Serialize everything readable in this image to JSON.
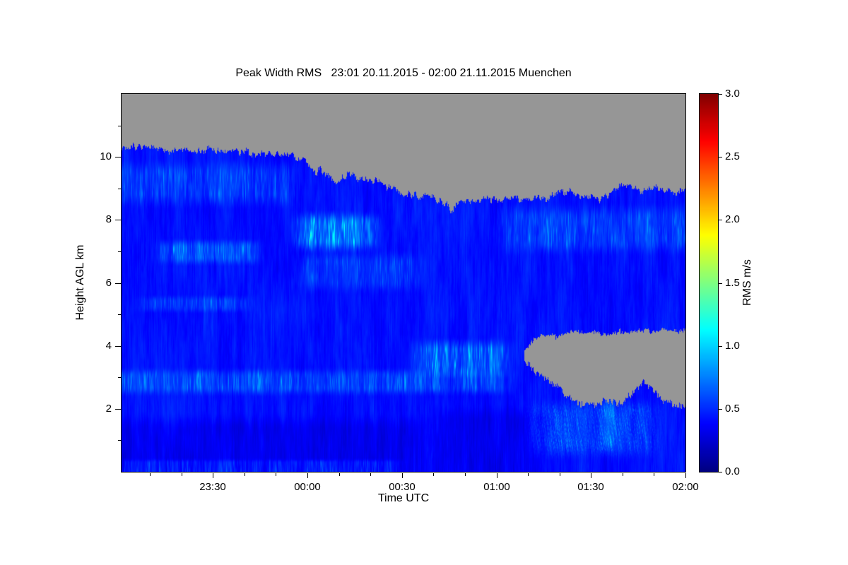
{
  "chart_data": {
    "type": "heatmap",
    "title": "Peak Width RMS   23:01 20.11.2015 - 02:00 21.11.2015 Muenchen",
    "xlabel": "Time UTC",
    "ylabel": "Height AGL km",
    "x_axis": {
      "range_minutes": [
        0,
        179
      ],
      "ticks": [
        {
          "minute": 29,
          "label": "23:30"
        },
        {
          "minute": 59,
          "label": "00:00"
        },
        {
          "minute": 89,
          "label": "00:30"
        },
        {
          "minute": 119,
          "label": "01:00"
        },
        {
          "minute": 149,
          "label": "01:30"
        },
        {
          "minute": 179,
          "label": "02:00"
        }
      ],
      "minor_minutes": [
        9,
        19,
        39,
        49,
        69,
        79,
        99,
        109,
        129,
        139,
        159,
        169
      ]
    },
    "y_axis": {
      "range_km": [
        0,
        12
      ],
      "ticks": [
        {
          "km": 2,
          "label": "2"
        },
        {
          "km": 4,
          "label": "4"
        },
        {
          "km": 6,
          "label": "6"
        },
        {
          "km": 8,
          "label": "8"
        },
        {
          "km": 10,
          "label": "10"
        }
      ],
      "minor_km": [
        1,
        3,
        5,
        7,
        9,
        11
      ]
    },
    "colorbar": {
      "label": "RMS m/s",
      "range": [
        0,
        3
      ],
      "ticks": [
        {
          "value": 0.0,
          "label": "0.0"
        },
        {
          "value": 0.5,
          "label": "0.5"
        },
        {
          "value": 1.0,
          "label": "1.0"
        },
        {
          "value": 1.5,
          "label": "1.5"
        },
        {
          "value": 2.0,
          "label": "2.0"
        },
        {
          "value": 2.5,
          "label": "2.5"
        },
        {
          "value": 3.0,
          "label": "3.0"
        }
      ],
      "stops": [
        {
          "v": 0.0,
          "rgb": [
            0,
            0,
            131
          ]
        },
        {
          "v": 0.375,
          "rgb": [
            0,
            0,
            255
          ]
        },
        {
          "v": 1.125,
          "rgb": [
            0,
            255,
            255
          ]
        },
        {
          "v": 1.875,
          "rgb": [
            255,
            255,
            0
          ]
        },
        {
          "v": 2.625,
          "rgb": [
            255,
            0,
            0
          ]
        },
        {
          "v": 3.0,
          "rgb": [
            128,
            0,
            0
          ]
        }
      ]
    },
    "no_data_color": "#969696",
    "field": {
      "base_value": 0.26,
      "cloud_top_km": [
        [
          0,
          10.35
        ],
        [
          8,
          10.3
        ],
        [
          18,
          10.22
        ],
        [
          30,
          10.2
        ],
        [
          42,
          10.15
        ],
        [
          52,
          10.05
        ],
        [
          58,
          9.95
        ],
        [
          61,
          9.6
        ],
        [
          64,
          9.5
        ],
        [
          68,
          9.2
        ],
        [
          72,
          9.45
        ],
        [
          76,
          9.3
        ],
        [
          82,
          9.25
        ],
        [
          86,
          8.95
        ],
        [
          92,
          8.8
        ],
        [
          98,
          8.75
        ],
        [
          103,
          8.5
        ],
        [
          105,
          8.25
        ],
        [
          107,
          8.6
        ],
        [
          112,
          8.6
        ],
        [
          120,
          8.65
        ],
        [
          128,
          8.7
        ],
        [
          136,
          8.72
        ],
        [
          142,
          8.95
        ],
        [
          147,
          8.7
        ],
        [
          152,
          8.62
        ],
        [
          157,
          9.0
        ],
        [
          161,
          9.1
        ],
        [
          165,
          8.95
        ],
        [
          169,
          9.05
        ],
        [
          173,
          8.9
        ],
        [
          179,
          8.92
        ]
      ],
      "no_data_blob": [
        [
          128,
          3.85,
          3.55
        ],
        [
          131,
          4.2,
          3.2
        ],
        [
          134,
          4.35,
          3.0
        ],
        [
          138,
          4.3,
          2.75
        ],
        [
          142,
          4.45,
          2.35
        ],
        [
          146,
          4.4,
          2.15
        ],
        [
          150,
          4.45,
          2.1
        ],
        [
          154,
          4.35,
          2.25
        ],
        [
          158,
          4.45,
          2.15
        ],
        [
          162,
          4.4,
          2.45
        ],
        [
          166,
          4.5,
          2.85
        ],
        [
          169,
          4.45,
          2.55
        ],
        [
          172,
          4.5,
          2.25
        ],
        [
          175,
          4.45,
          2.15
        ],
        [
          179,
          4.5,
          2.0
        ]
      ],
      "features": [
        {
          "m0": 52,
          "m1": 84,
          "k0": 6.9,
          "k1": 8.35,
          "amp": 1.0,
          "seed": 1
        },
        {
          "m0": 9,
          "m1": 47,
          "k0": 6.5,
          "k1": 7.45,
          "amp": 0.6,
          "seed": 2
        },
        {
          "m0": 0,
          "m1": 58,
          "k0": 8.3,
          "k1": 10.0,
          "amp": 0.42,
          "seed": 3
        },
        {
          "m0": 2,
          "m1": 44,
          "k0": 5.0,
          "k1": 5.65,
          "amp": 0.35,
          "seed": 4
        },
        {
          "m0": 0,
          "m1": 127,
          "k0": 2.35,
          "k1": 3.35,
          "amp": 0.52,
          "seed": 5
        },
        {
          "m0": 90,
          "m1": 126,
          "k0": 2.9,
          "k1": 4.3,
          "amp": 0.8,
          "seed": 6
        },
        {
          "m0": 117,
          "m1": 179,
          "k0": 6.8,
          "k1": 8.6,
          "amp": 0.42,
          "seed": 7
        },
        {
          "m0": 52,
          "m1": 98,
          "k0": 5.6,
          "k1": 7.1,
          "amp": 0.34,
          "seed": 8
        },
        {
          "m0": 126,
          "m1": 174,
          "k0": 0.3,
          "k1": 2.4,
          "amp": 0.42,
          "seed": 9,
          "diag": true
        },
        {
          "m0": 0,
          "m1": 92,
          "k0": 0.0,
          "k1": 0.45,
          "amp": 0.4,
          "seed": 10
        },
        {
          "m0": 152,
          "m1": 157,
          "k0": 0.5,
          "k1": 2.6,
          "amp": 0.5,
          "seed": 12
        },
        {
          "m0": 0,
          "m1": 100,
          "k0": 0.0,
          "k1": 1.9,
          "amp": -0.09,
          "seed": 13
        },
        {
          "m0": 95,
          "m1": 140,
          "k0": 0.0,
          "k1": 2.2,
          "amp": -0.08,
          "seed": 14
        }
      ]
    }
  }
}
